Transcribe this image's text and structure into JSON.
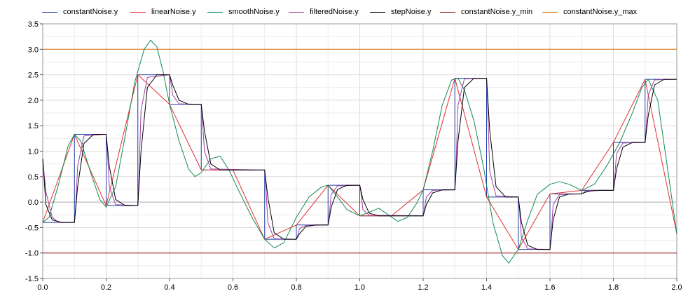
{
  "chart_data": {
    "type": "line",
    "xlim": [
      0,
      2
    ],
    "ylim": [
      -1.5,
      3.5
    ],
    "grid": true,
    "legend_placement": "top",
    "x_ticks": [
      "0.0",
      "0.2",
      "0.4",
      "0.6",
      "0.8",
      "1.0",
      "1.2",
      "1.4",
      "1.6",
      "1.8",
      "2.0"
    ],
    "x_tick_values": [
      0,
      0.2,
      0.4,
      0.6,
      0.8,
      1.0,
      1.2,
      1.4,
      1.6,
      1.8,
      2.0
    ],
    "y_ticks": [
      "-1.5",
      "-1.0",
      "-0.5",
      "0.0",
      "0.5",
      "1.0",
      "1.5",
      "2.0",
      "2.5",
      "3.0",
      "3.5"
    ],
    "y_tick_values": [
      -1.5,
      -1.0,
      -0.5,
      0.0,
      0.5,
      1.0,
      1.5,
      2.0,
      2.5,
      3.0,
      3.5
    ],
    "series": [
      {
        "name": "constantNoise.y",
        "color": "#1f3fa8",
        "x": [
          0,
          0.1,
          0.1,
          0.2,
          0.2,
          0.3,
          0.3,
          0.4,
          0.4,
          0.5,
          0.5,
          0.7,
          0.7,
          0.8,
          0.8,
          0.9,
          0.9,
          1.0,
          1.0,
          1.2,
          1.2,
          1.3,
          1.3,
          1.4,
          1.4,
          1.5,
          1.5,
          1.6,
          1.6,
          1.7,
          1.7,
          1.8,
          1.8,
          1.9,
          1.9,
          2.0
        ],
        "y": [
          -0.4,
          -0.4,
          1.33,
          1.33,
          -0.07,
          -0.07,
          2.5,
          2.5,
          1.92,
          1.92,
          0.63,
          0.63,
          -0.73,
          -0.73,
          -0.45,
          -0.45,
          0.33,
          0.33,
          -0.27,
          -0.27,
          0.24,
          0.24,
          2.43,
          2.43,
          0.1,
          0.1,
          -0.93,
          -0.93,
          0.16,
          0.16,
          0.23,
          0.23,
          1.17,
          1.17,
          2.41,
          2.41
        ]
      },
      {
        "name": "linearNoise.y",
        "color": "#e03030",
        "x": [
          0,
          0.1,
          0.2,
          0.3,
          0.4,
          0.5,
          0.6,
          0.7,
          0.8,
          0.9,
          1.0,
          1.1,
          1.2,
          1.3,
          1.4,
          1.5,
          1.6,
          1.7,
          1.8,
          1.9,
          2.0
        ],
        "y": [
          -0.4,
          1.33,
          -0.07,
          2.5,
          1.92,
          0.63,
          0.63,
          -0.73,
          -0.45,
          0.33,
          -0.27,
          -0.27,
          0.24,
          2.43,
          0.1,
          -0.93,
          0.16,
          0.23,
          1.17,
          2.41,
          -0.62
        ]
      },
      {
        "name": "smoothNoise.y",
        "color": "#128a52",
        "x": [
          0,
          0.02,
          0.05,
          0.08,
          0.1,
          0.12,
          0.15,
          0.18,
          0.2,
          0.23,
          0.26,
          0.29,
          0.32,
          0.34,
          0.36,
          0.38,
          0.4,
          0.43,
          0.46,
          0.48,
          0.5,
          0.53,
          0.56,
          0.59,
          0.62,
          0.66,
          0.7,
          0.73,
          0.76,
          0.8,
          0.84,
          0.88,
          0.9,
          0.93,
          0.96,
          1.0,
          1.03,
          1.06,
          1.09,
          1.12,
          1.15,
          1.18,
          1.2,
          1.23,
          1.26,
          1.29,
          1.31,
          1.33,
          1.36,
          1.39,
          1.42,
          1.45,
          1.47,
          1.5,
          1.53,
          1.56,
          1.6,
          1.63,
          1.66,
          1.7,
          1.74,
          1.78,
          1.82,
          1.86,
          1.89,
          1.91,
          1.94,
          1.97,
          2.0
        ],
        "y": [
          -0.4,
          -0.3,
          0.35,
          1.1,
          1.33,
          1.2,
          0.6,
          0.05,
          -0.1,
          0.3,
          1.3,
          2.35,
          3.0,
          3.18,
          3.05,
          2.55,
          1.92,
          1.2,
          0.65,
          0.5,
          0.58,
          0.85,
          0.9,
          0.6,
          0.2,
          -0.3,
          -0.73,
          -0.9,
          -0.8,
          -0.3,
          0.1,
          0.3,
          0.33,
          0.1,
          -0.15,
          -0.27,
          -0.2,
          -0.12,
          -0.25,
          -0.38,
          -0.3,
          -0.02,
          0.24,
          1.0,
          1.9,
          2.4,
          2.43,
          2.2,
          1.6,
          0.7,
          -0.4,
          -1.05,
          -1.2,
          -0.93,
          -0.35,
          0.15,
          0.35,
          0.4,
          0.35,
          0.23,
          0.35,
          0.72,
          1.17,
          1.75,
          2.25,
          2.41,
          2.0,
          0.7,
          -0.62
        ]
      },
      {
        "name": "filteredNoise.y",
        "color": "#a040a0",
        "x": [
          0,
          0.01,
          0.03,
          0.05,
          0.1,
          0.103,
          0.11,
          0.13,
          0.2,
          0.203,
          0.21,
          0.23,
          0.3,
          0.303,
          0.31,
          0.33,
          0.4,
          0.403,
          0.41,
          0.43,
          0.5,
          0.503,
          0.51,
          0.53,
          0.7,
          0.703,
          0.71,
          0.73,
          0.8,
          0.803,
          0.81,
          0.83,
          0.9,
          0.903,
          0.91,
          0.93,
          1.0,
          1.003,
          1.01,
          1.03,
          1.2,
          1.203,
          1.21,
          1.23,
          1.3,
          1.303,
          1.31,
          1.33,
          1.4,
          1.403,
          1.41,
          1.43,
          1.5,
          1.503,
          1.51,
          1.53,
          1.6,
          1.603,
          1.61,
          1.63,
          1.7,
          1.703,
          1.71,
          1.73,
          1.8,
          1.803,
          1.81,
          1.83,
          1.9,
          1.903,
          1.91,
          1.93,
          2.0
        ],
        "y": [
          0.85,
          0.2,
          -0.3,
          -0.4,
          -0.4,
          -0.2,
          0.7,
          1.3,
          1.33,
          1.1,
          0.3,
          -0.05,
          -0.07,
          0.4,
          1.8,
          2.45,
          2.5,
          2.4,
          2.1,
          1.93,
          1.92,
          1.7,
          1.0,
          0.65,
          0.63,
          0.4,
          -0.4,
          -0.72,
          -0.73,
          -0.68,
          -0.52,
          -0.46,
          -0.45,
          -0.32,
          0.15,
          0.32,
          0.33,
          0.22,
          -0.15,
          -0.26,
          -0.27,
          -0.18,
          0.1,
          0.23,
          0.24,
          0.6,
          1.9,
          2.42,
          2.43,
          2.0,
          0.6,
          0.12,
          0.1,
          -0.08,
          -0.7,
          -0.92,
          -0.93,
          -0.73,
          -0.05,
          0.15,
          0.16,
          0.17,
          0.21,
          0.23,
          0.23,
          0.4,
          0.95,
          1.16,
          1.17,
          1.4,
          2.1,
          2.4,
          2.41
        ]
      },
      {
        "name": "stepNoise.y",
        "color": "#000000",
        "x": [
          0,
          0.01,
          0.03,
          0.06,
          0.1,
          0.11,
          0.13,
          0.16,
          0.2,
          0.21,
          0.23,
          0.26,
          0.3,
          0.31,
          0.33,
          0.36,
          0.4,
          0.41,
          0.43,
          0.46,
          0.5,
          0.51,
          0.53,
          0.56,
          0.7,
          0.71,
          0.73,
          0.76,
          0.8,
          0.81,
          0.83,
          0.86,
          0.9,
          0.91,
          0.93,
          0.96,
          1.0,
          1.01,
          1.03,
          1.06,
          1.2,
          1.21,
          1.23,
          1.26,
          1.3,
          1.31,
          1.33,
          1.36,
          1.4,
          1.41,
          1.43,
          1.46,
          1.5,
          1.51,
          1.53,
          1.56,
          1.6,
          1.61,
          1.63,
          1.66,
          1.7,
          1.71,
          1.73,
          1.76,
          1.8,
          1.81,
          1.83,
          1.86,
          1.9,
          1.91,
          1.93,
          1.96,
          2.0
        ],
        "y": [
          0.85,
          -0.05,
          -0.35,
          -0.4,
          -0.4,
          0.3,
          1.15,
          1.33,
          1.33,
          0.7,
          0.05,
          -0.07,
          -0.07,
          1.0,
          2.25,
          2.5,
          2.5,
          2.3,
          2.0,
          1.92,
          1.92,
          1.4,
          0.75,
          0.63,
          0.63,
          0.1,
          -0.6,
          -0.73,
          -0.73,
          -0.62,
          -0.48,
          -0.45,
          -0.45,
          -0.1,
          0.25,
          0.33,
          0.33,
          0.05,
          -0.22,
          -0.27,
          -0.27,
          -0.05,
          0.18,
          0.24,
          0.24,
          1.2,
          2.25,
          2.43,
          2.43,
          1.4,
          0.3,
          0.1,
          0.1,
          -0.4,
          -0.85,
          -0.93,
          -0.93,
          -0.35,
          0.1,
          0.16,
          0.16,
          0.19,
          0.22,
          0.23,
          0.23,
          0.65,
          1.08,
          1.17,
          1.17,
          1.7,
          2.3,
          2.41,
          2.41
        ]
      },
      {
        "name": "constantNoise.y_min",
        "color": "#a01010",
        "x": [
          0,
          2
        ],
        "y": [
          -1.0,
          -1.0
        ]
      },
      {
        "name": "constantNoise.y_max",
        "color": "#e07010",
        "x": [
          0,
          2
        ],
        "y": [
          3.0,
          3.0
        ]
      }
    ]
  }
}
